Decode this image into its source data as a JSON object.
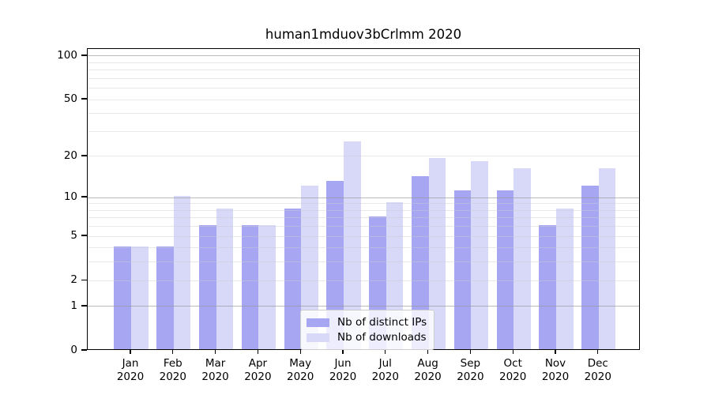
{
  "chart_data": {
    "type": "bar",
    "title": "human1mduov3bCrlmm 2020",
    "categories": [
      "Jan 2020",
      "Feb 2020",
      "Mar 2020",
      "Apr 2020",
      "May 2020",
      "Jun 2020",
      "Jul 2020",
      "Aug 2020",
      "Sep 2020",
      "Oct 2020",
      "Nov 2020",
      "Dec 2020"
    ],
    "x_tick_months": [
      "Jan",
      "Feb",
      "Mar",
      "Apr",
      "May",
      "Jun",
      "Jul",
      "Aug",
      "Sep",
      "Oct",
      "Nov",
      "Dec"
    ],
    "x_tick_year": "2020",
    "series": [
      {
        "name": "Nb of distinct IPs",
        "color": "#a6a6f2",
        "values": [
          4,
          4,
          6,
          6,
          8,
          13,
          7,
          14,
          11,
          11,
          6,
          12
        ]
      },
      {
        "name": "Nb of downloads",
        "color": "#d8d8f8",
        "values": [
          4,
          10,
          8,
          6,
          12,
          25,
          9,
          19,
          18,
          16,
          8,
          16
        ]
      }
    ],
    "y_ticks": [
      0,
      1,
      2,
      5,
      10,
      20,
      50,
      100
    ],
    "y_scale": "log1p",
    "ylim": [
      0,
      100
    ],
    "grid": true,
    "legend_position": "lower center"
  },
  "colors": {
    "background": "#ffffff",
    "spine": "#000000",
    "major_grid": "rgba(150,150,150,0.65)",
    "minor_grid": "rgba(205,205,205,0.45)",
    "legend_border": "#cccccc",
    "legend_background": "rgba(255,255,255,0.8)"
  }
}
